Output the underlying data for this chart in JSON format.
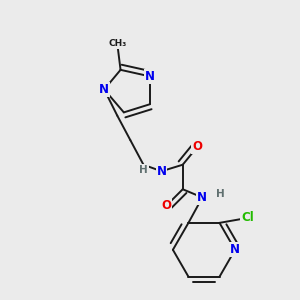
{
  "background_color": "#ebebeb",
  "bond_color": "#1a1a1a",
  "bond_width": 1.4,
  "atom_colors": {
    "N": "#0000ee",
    "O": "#ee0000",
    "Cl": "#22bb00",
    "C": "#1a1a1a",
    "H": "#607070"
  },
  "font_size": 8.5
}
